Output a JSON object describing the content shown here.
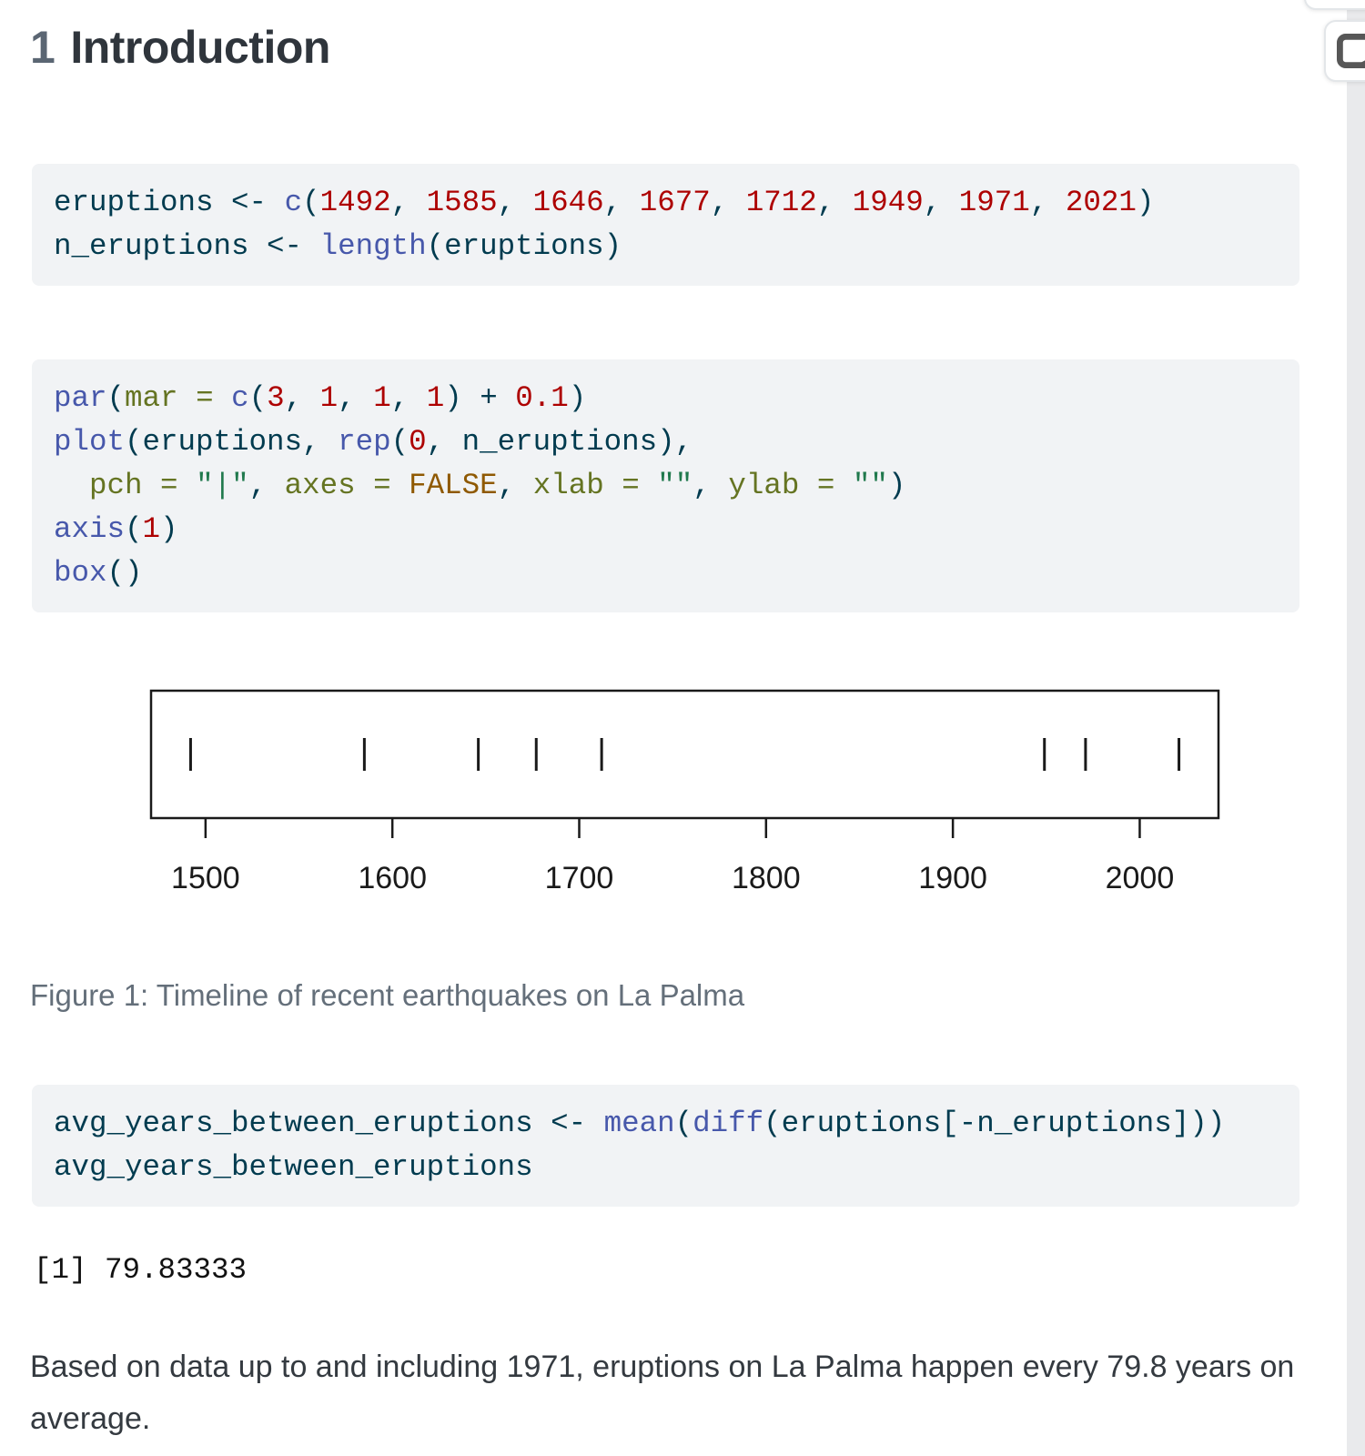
{
  "heading": {
    "number": "1",
    "title": "Introduction"
  },
  "toolbar": {
    "partial_button_icon": "hidden-toolbar-button",
    "note_button_icon": "annotation-note-icon"
  },
  "code_blocks": [
    {
      "language": "r",
      "lines": [
        [
          {
            "c": "b",
            "t": "eruptions "
          },
          {
            "c": "b",
            "t": "<- "
          },
          {
            "c": "fu",
            "t": "c"
          },
          {
            "c": "b",
            "t": "("
          },
          {
            "c": "dv",
            "t": "1492"
          },
          {
            "c": "b",
            "t": ", "
          },
          {
            "c": "dv",
            "t": "1585"
          },
          {
            "c": "b",
            "t": ", "
          },
          {
            "c": "dv",
            "t": "1646"
          },
          {
            "c": "b",
            "t": ", "
          },
          {
            "c": "dv",
            "t": "1677"
          },
          {
            "c": "b",
            "t": ", "
          },
          {
            "c": "dv",
            "t": "1712"
          },
          {
            "c": "b",
            "t": ", "
          },
          {
            "c": "dv",
            "t": "1949"
          },
          {
            "c": "b",
            "t": ", "
          },
          {
            "c": "dv",
            "t": "1971"
          },
          {
            "c": "b",
            "t": ", "
          },
          {
            "c": "dv",
            "t": "2021"
          },
          {
            "c": "b",
            "t": ")"
          }
        ],
        [
          {
            "c": "b",
            "t": "n_eruptions "
          },
          {
            "c": "b",
            "t": "<- "
          },
          {
            "c": "fu",
            "t": "length"
          },
          {
            "c": "b",
            "t": "(eruptions)"
          }
        ]
      ]
    },
    {
      "language": "r",
      "lines": [
        [
          {
            "c": "fu",
            "t": "par"
          },
          {
            "c": "b",
            "t": "("
          },
          {
            "c": "at",
            "t": "mar"
          },
          {
            "c": "b",
            "t": " "
          },
          {
            "c": "at",
            "t": "="
          },
          {
            "c": "b",
            "t": " "
          },
          {
            "c": "fu",
            "t": "c"
          },
          {
            "c": "b",
            "t": "("
          },
          {
            "c": "dv",
            "t": "3"
          },
          {
            "c": "b",
            "t": ", "
          },
          {
            "c": "dv",
            "t": "1"
          },
          {
            "c": "b",
            "t": ", "
          },
          {
            "c": "dv",
            "t": "1"
          },
          {
            "c": "b",
            "t": ", "
          },
          {
            "c": "dv",
            "t": "1"
          },
          {
            "c": "b",
            "t": ") "
          },
          {
            "c": "b",
            "t": "+"
          },
          {
            "c": "b",
            "t": " "
          },
          {
            "c": "dv",
            "t": "0.1"
          },
          {
            "c": "b",
            "t": ")"
          }
        ],
        [
          {
            "c": "fu",
            "t": "plot"
          },
          {
            "c": "b",
            "t": "(eruptions, "
          },
          {
            "c": "fu",
            "t": "rep"
          },
          {
            "c": "b",
            "t": "("
          },
          {
            "c": "dv",
            "t": "0"
          },
          {
            "c": "b",
            "t": ", n_eruptions),"
          }
        ],
        [
          {
            "c": "b",
            "t": "  "
          },
          {
            "c": "at",
            "t": "pch"
          },
          {
            "c": "b",
            "t": " "
          },
          {
            "c": "at",
            "t": "="
          },
          {
            "c": "b",
            "t": " "
          },
          {
            "c": "st",
            "t": "\"|\""
          },
          {
            "c": "b",
            "t": ", "
          },
          {
            "c": "at",
            "t": "axes"
          },
          {
            "c": "b",
            "t": " "
          },
          {
            "c": "at",
            "t": "="
          },
          {
            "c": "b",
            "t": " "
          },
          {
            "c": "cn",
            "t": "FALSE"
          },
          {
            "c": "b",
            "t": ", "
          },
          {
            "c": "at",
            "t": "xlab"
          },
          {
            "c": "b",
            "t": " "
          },
          {
            "c": "at",
            "t": "="
          },
          {
            "c": "b",
            "t": " "
          },
          {
            "c": "st",
            "t": "\"\""
          },
          {
            "c": "b",
            "t": ", "
          },
          {
            "c": "at",
            "t": "ylab"
          },
          {
            "c": "b",
            "t": " "
          },
          {
            "c": "at",
            "t": "="
          },
          {
            "c": "b",
            "t": " "
          },
          {
            "c": "st",
            "t": "\"\""
          },
          {
            "c": "b",
            "t": ")"
          }
        ],
        [
          {
            "c": "fu",
            "t": "axis"
          },
          {
            "c": "b",
            "t": "("
          },
          {
            "c": "dv",
            "t": "1"
          },
          {
            "c": "b",
            "t": ")"
          }
        ],
        [
          {
            "c": "fu",
            "t": "box"
          },
          {
            "c": "b",
            "t": "()"
          }
        ]
      ]
    },
    {
      "language": "r",
      "lines": [
        [
          {
            "c": "b",
            "t": "avg_years_between_eruptions "
          },
          {
            "c": "b",
            "t": "<- "
          },
          {
            "c": "fu",
            "t": "mean"
          },
          {
            "c": "b",
            "t": "("
          },
          {
            "c": "fu",
            "t": "diff"
          },
          {
            "c": "b",
            "t": "(eruptions[-n_eruptions]))"
          }
        ],
        [
          {
            "c": "b",
            "t": "avg_years_between_eruptions"
          }
        ]
      ]
    }
  ],
  "chart_data": {
    "type": "scatter",
    "title": "",
    "xlabel": "",
    "ylabel": "",
    "x": [
      1492,
      1585,
      1646,
      1677,
      1712,
      1949,
      1971,
      2021
    ],
    "y": [
      0,
      0,
      0,
      0,
      0,
      0,
      0,
      0
    ],
    "marker": "|",
    "xticks": [
      1500,
      1600,
      1700,
      1800,
      1900,
      2000
    ],
    "xlim": [
      1470.84,
      2042.16
    ],
    "grid": false,
    "axes_box": true,
    "axis_side_shown": "bottom"
  },
  "figure": {
    "caption": "Figure 1: Timeline of recent earthquakes on La Palma"
  },
  "output": {
    "text": "[1] 79.83333"
  },
  "paragraph": {
    "text": "Based on data up to and including 1971, eruptions on La Palma happen every 79.8 years on average."
  },
  "colors": {
    "code_background": "#f1f3f5",
    "code_base": "#003B4F",
    "code_function": "#4758AB",
    "code_number": "#AD0000",
    "code_string": "#20794D",
    "code_attribute": "#657422",
    "code_constant": "#8f5902",
    "heading_text": "#2f353c",
    "heading_number": "#5b6673",
    "caption_text": "#646f7a",
    "body_text": "#343a40",
    "plot_ink": "#1a1a1a",
    "scrollbar_track": "#e9eaec"
  }
}
